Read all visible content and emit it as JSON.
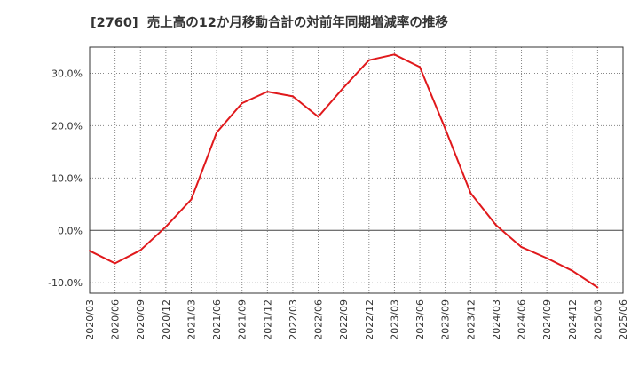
{
  "chart_data": {
    "type": "line",
    "title": "[2760]  売上高の12か月移動合計の対前年同期増減率の推移",
    "xlabel": "",
    "ylabel": "",
    "ylim": [
      -12,
      35
    ],
    "yticks": [
      -10,
      0,
      10,
      20,
      30
    ],
    "ytick_labels": [
      "-10.0%",
      "0.0%",
      "10.0%",
      "20.0%",
      "30.0%"
    ],
    "categories": [
      "2020/03",
      "2020/06",
      "2020/09",
      "2020/12",
      "2021/03",
      "2021/06",
      "2021/09",
      "2021/12",
      "2022/03",
      "2022/06",
      "2022/09",
      "2022/12",
      "2023/03",
      "2023/06",
      "2023/09",
      "2023/12",
      "2024/03",
      "2024/06",
      "2024/09",
      "2024/12",
      "2025/03",
      "2025/06"
    ],
    "grid": true,
    "series": [
      {
        "name": "売上高の12か月移動合計の対前年同期増減率",
        "color": "#e0191c",
        "values": [
          -3.9,
          -6.3,
          -3.8,
          0.7,
          5.9,
          18.7,
          24.3,
          26.5,
          25.6,
          21.7,
          27.3,
          32.5,
          33.6,
          31.2,
          19.4,
          7.1,
          1.0,
          -3.2,
          -5.3,
          -7.7,
          -10.9,
          null
        ]
      }
    ]
  }
}
